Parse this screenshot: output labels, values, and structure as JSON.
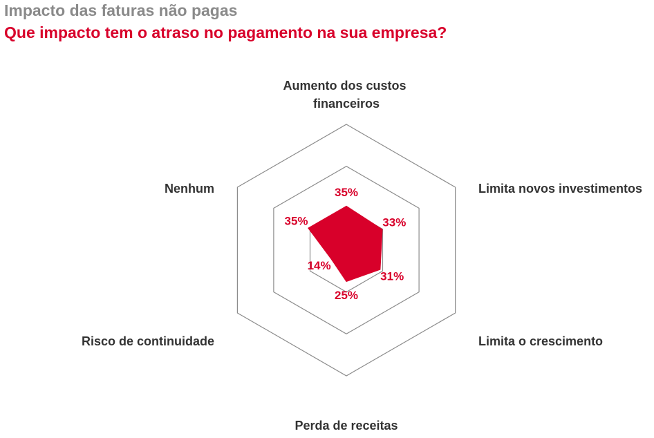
{
  "header": {
    "title": "Impacto das faturas não pagas",
    "subtitle": "Que impacto tem o atraso no pagamento na sua empresa?"
  },
  "chart_data": {
    "type": "radar",
    "title": "Impacto das faturas não pagas",
    "subtitle": "Que impacto tem o atraso no pagamento na sua empresa?",
    "categories": [
      "Aumento dos custos financeiros",
      "Limita novos investimentos",
      "Limita o crescimento",
      "Perda de receitas",
      "Risco de continuidade",
      "Nenhum"
    ],
    "category_lines": [
      [
        "Aumento dos custos",
        "financeiros"
      ],
      [
        "Limita novos investimentos"
      ],
      [
        "Limita o crescimento"
      ],
      [
        "Perda de receitas"
      ],
      [
        "Risco de continuidade"
      ],
      [
        "Nenhum"
      ]
    ],
    "values": [
      35,
      33,
      31,
      25,
      14,
      35
    ],
    "value_labels": [
      "35%",
      "33%",
      "31%",
      "25%",
      "14%",
      "35%"
    ],
    "unit": "%",
    "rmax": 100,
    "grid_levels": [
      0,
      33.33,
      66.67,
      100
    ],
    "grid": true,
    "legend": false,
    "colors": {
      "fill": "#d8002a",
      "grid": "#8c8c8c",
      "label": "#333333",
      "value": "#d8002a"
    }
  }
}
